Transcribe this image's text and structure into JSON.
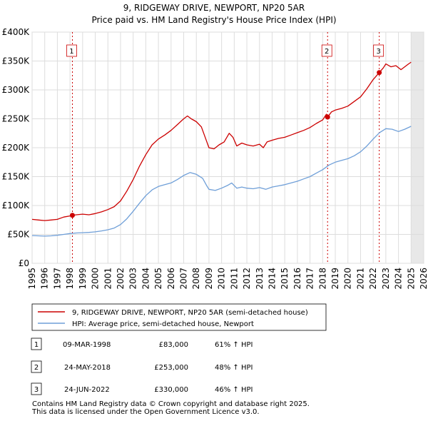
{
  "chart_data": {
    "type": "line",
    "title": "9, RIDGEWAY DRIVE, NEWPORT, NP20 5AR",
    "subtitle": "Price paid vs. HM Land Registry's House Price Index (HPI)",
    "xlim": [
      1995,
      2026
    ],
    "ylim": [
      0,
      400000
    ],
    "x_ticks": [
      "1995",
      "1996",
      "1997",
      "1998",
      "1999",
      "2000",
      "2001",
      "2002",
      "2003",
      "2004",
      "2005",
      "2006",
      "2007",
      "2008",
      "2009",
      "2010",
      "2011",
      "2012",
      "2013",
      "2014",
      "2015",
      "2016",
      "2017",
      "2018",
      "2019",
      "2020",
      "2021",
      "2022",
      "2023",
      "2024",
      "2025",
      "2026"
    ],
    "y_ticks": [
      {
        "value": 0,
        "label": "£0"
      },
      {
        "value": 50000,
        "label": "£50K"
      },
      {
        "value": 100000,
        "label": "£100K"
      },
      {
        "value": 150000,
        "label": "£150K"
      },
      {
        "value": 200000,
        "label": "£200K"
      },
      {
        "value": 250000,
        "label": "£250K"
      },
      {
        "value": 300000,
        "label": "£300K"
      },
      {
        "value": 350000,
        "label": "£350K"
      },
      {
        "value": 400000,
        "label": "£400K"
      }
    ],
    "grid": true,
    "series": [
      {
        "name": "9, RIDGEWAY DRIVE, NEWPORT, NP20 5AR (semi-detached house)",
        "color": "#cc0000",
        "points": [
          [
            1995.0,
            76000
          ],
          [
            1995.5,
            75000
          ],
          [
            1996.0,
            74000
          ],
          [
            1996.5,
            75000
          ],
          [
            1997.0,
            76000
          ],
          [
            1997.5,
            80000
          ],
          [
            1998.0,
            82000
          ],
          [
            1998.19,
            83000
          ],
          [
            1998.5,
            84000
          ],
          [
            1999.0,
            85000
          ],
          [
            1999.5,
            84000
          ],
          [
            2000.0,
            86000
          ],
          [
            2000.5,
            89000
          ],
          [
            2001.0,
            93000
          ],
          [
            2001.5,
            98000
          ],
          [
            2002.0,
            108000
          ],
          [
            2002.5,
            125000
          ],
          [
            2003.0,
            145000
          ],
          [
            2003.5,
            168000
          ],
          [
            2004.0,
            188000
          ],
          [
            2004.5,
            205000
          ],
          [
            2005.0,
            215000
          ],
          [
            2005.5,
            222000
          ],
          [
            2006.0,
            230000
          ],
          [
            2006.5,
            240000
          ],
          [
            2007.0,
            250000
          ],
          [
            2007.3,
            255000
          ],
          [
            2007.6,
            250000
          ],
          [
            2008.0,
            245000
          ],
          [
            2008.4,
            236000
          ],
          [
            2008.8,
            212000
          ],
          [
            2009.0,
            200000
          ],
          [
            2009.4,
            198000
          ],
          [
            2009.8,
            205000
          ],
          [
            2010.2,
            210000
          ],
          [
            2010.6,
            225000
          ],
          [
            2010.9,
            218000
          ],
          [
            2011.2,
            203000
          ],
          [
            2011.6,
            208000
          ],
          [
            2012.0,
            205000
          ],
          [
            2012.5,
            203000
          ],
          [
            2013.0,
            206000
          ],
          [
            2013.3,
            200000
          ],
          [
            2013.6,
            210000
          ],
          [
            2014.0,
            213000
          ],
          [
            2014.5,
            216000
          ],
          [
            2015.0,
            218000
          ],
          [
            2015.5,
            222000
          ],
          [
            2016.0,
            226000
          ],
          [
            2016.5,
            230000
          ],
          [
            2017.0,
            235000
          ],
          [
            2017.5,
            242000
          ],
          [
            2018.0,
            248000
          ],
          [
            2018.3,
            258000
          ],
          [
            2018.39,
            253000
          ],
          [
            2018.7,
            262000
          ],
          [
            2019.0,
            265000
          ],
          [
            2019.5,
            268000
          ],
          [
            2020.0,
            272000
          ],
          [
            2020.5,
            280000
          ],
          [
            2021.0,
            288000
          ],
          [
            2021.5,
            302000
          ],
          [
            2022.0,
            318000
          ],
          [
            2022.48,
            330000
          ],
          [
            2022.8,
            338000
          ],
          [
            2023.0,
            345000
          ],
          [
            2023.4,
            340000
          ],
          [
            2023.8,
            342000
          ],
          [
            2024.2,
            335000
          ],
          [
            2024.5,
            340000
          ],
          [
            2024.8,
            345000
          ],
          [
            2025.0,
            348000
          ]
        ]
      },
      {
        "name": "HPI: Average price, semi-detached house, Newport",
        "color": "#6f9fd8",
        "points": [
          [
            1995.0,
            48000
          ],
          [
            1995.5,
            47500
          ],
          [
            1996.0,
            47000
          ],
          [
            1996.5,
            47500
          ],
          [
            1997.0,
            48500
          ],
          [
            1997.5,
            50000
          ],
          [
            1998.0,
            51500
          ],
          [
            1998.5,
            52500
          ],
          [
            1999.0,
            53000
          ],
          [
            1999.5,
            53500
          ],
          [
            2000.0,
            54500
          ],
          [
            2000.5,
            56000
          ],
          [
            2001.0,
            58000
          ],
          [
            2001.5,
            61000
          ],
          [
            2002.0,
            67000
          ],
          [
            2002.5,
            77000
          ],
          [
            2003.0,
            90000
          ],
          [
            2003.5,
            104000
          ],
          [
            2004.0,
            117000
          ],
          [
            2004.5,
            127000
          ],
          [
            2005.0,
            133000
          ],
          [
            2005.5,
            136000
          ],
          [
            2006.0,
            139000
          ],
          [
            2006.5,
            145000
          ],
          [
            2007.0,
            152000
          ],
          [
            2007.5,
            157000
          ],
          [
            2008.0,
            154000
          ],
          [
            2008.5,
            147000
          ],
          [
            2008.8,
            135000
          ],
          [
            2009.0,
            128000
          ],
          [
            2009.5,
            126000
          ],
          [
            2010.0,
            130000
          ],
          [
            2010.5,
            135000
          ],
          [
            2010.8,
            139000
          ],
          [
            2011.2,
            130000
          ],
          [
            2011.6,
            132000
          ],
          [
            2012.0,
            130000
          ],
          [
            2012.5,
            129000
          ],
          [
            2013.0,
            131000
          ],
          [
            2013.5,
            128000
          ],
          [
            2014.0,
            132000
          ],
          [
            2014.5,
            134000
          ],
          [
            2015.0,
            136000
          ],
          [
            2015.5,
            139000
          ],
          [
            2016.0,
            142000
          ],
          [
            2016.5,
            146000
          ],
          [
            2017.0,
            150000
          ],
          [
            2017.5,
            156000
          ],
          [
            2018.0,
            162000
          ],
          [
            2018.5,
            170000
          ],
          [
            2019.0,
            175000
          ],
          [
            2019.5,
            178000
          ],
          [
            2020.0,
            181000
          ],
          [
            2020.5,
            186000
          ],
          [
            2021.0,
            193000
          ],
          [
            2021.5,
            203000
          ],
          [
            2022.0,
            215000
          ],
          [
            2022.5,
            226000
          ],
          [
            2023.0,
            233000
          ],
          [
            2023.5,
            232000
          ],
          [
            2024.0,
            228000
          ],
          [
            2024.5,
            232000
          ],
          [
            2025.0,
            237000
          ]
        ]
      }
    ],
    "sales": [
      {
        "num": "1",
        "x": 1998.19,
        "y": 83000
      },
      {
        "num": "2",
        "x": 2018.39,
        "y": 253000
      },
      {
        "num": "3",
        "x": 2022.48,
        "y": 330000
      }
    ],
    "shaded_region_start": 2025.0,
    "legend_position": "below plot"
  },
  "legend": {
    "entries": [
      {
        "label": "9, RIDGEWAY DRIVE, NEWPORT, NP20 5AR (semi-detached house)",
        "color": "#cc0000"
      },
      {
        "label": "HPI: Average price, semi-detached house, Newport",
        "color": "#6f9fd8"
      }
    ]
  },
  "table": {
    "rows": [
      {
        "num": "1",
        "date": "09-MAR-1998",
        "price": "£83,000",
        "hpi": "61% ↑ HPI"
      },
      {
        "num": "2",
        "date": "24-MAY-2018",
        "price": "£253,000",
        "hpi": "48% ↑ HPI"
      },
      {
        "num": "3",
        "date": "24-JUN-2022",
        "price": "£330,000",
        "hpi": "46% ↑ HPI"
      }
    ]
  },
  "footer": {
    "line1": "Contains HM Land Registry data © Crown copyright and database right 2025.",
    "line2": "This data is licensed under the Open Government Licence v3.0."
  }
}
